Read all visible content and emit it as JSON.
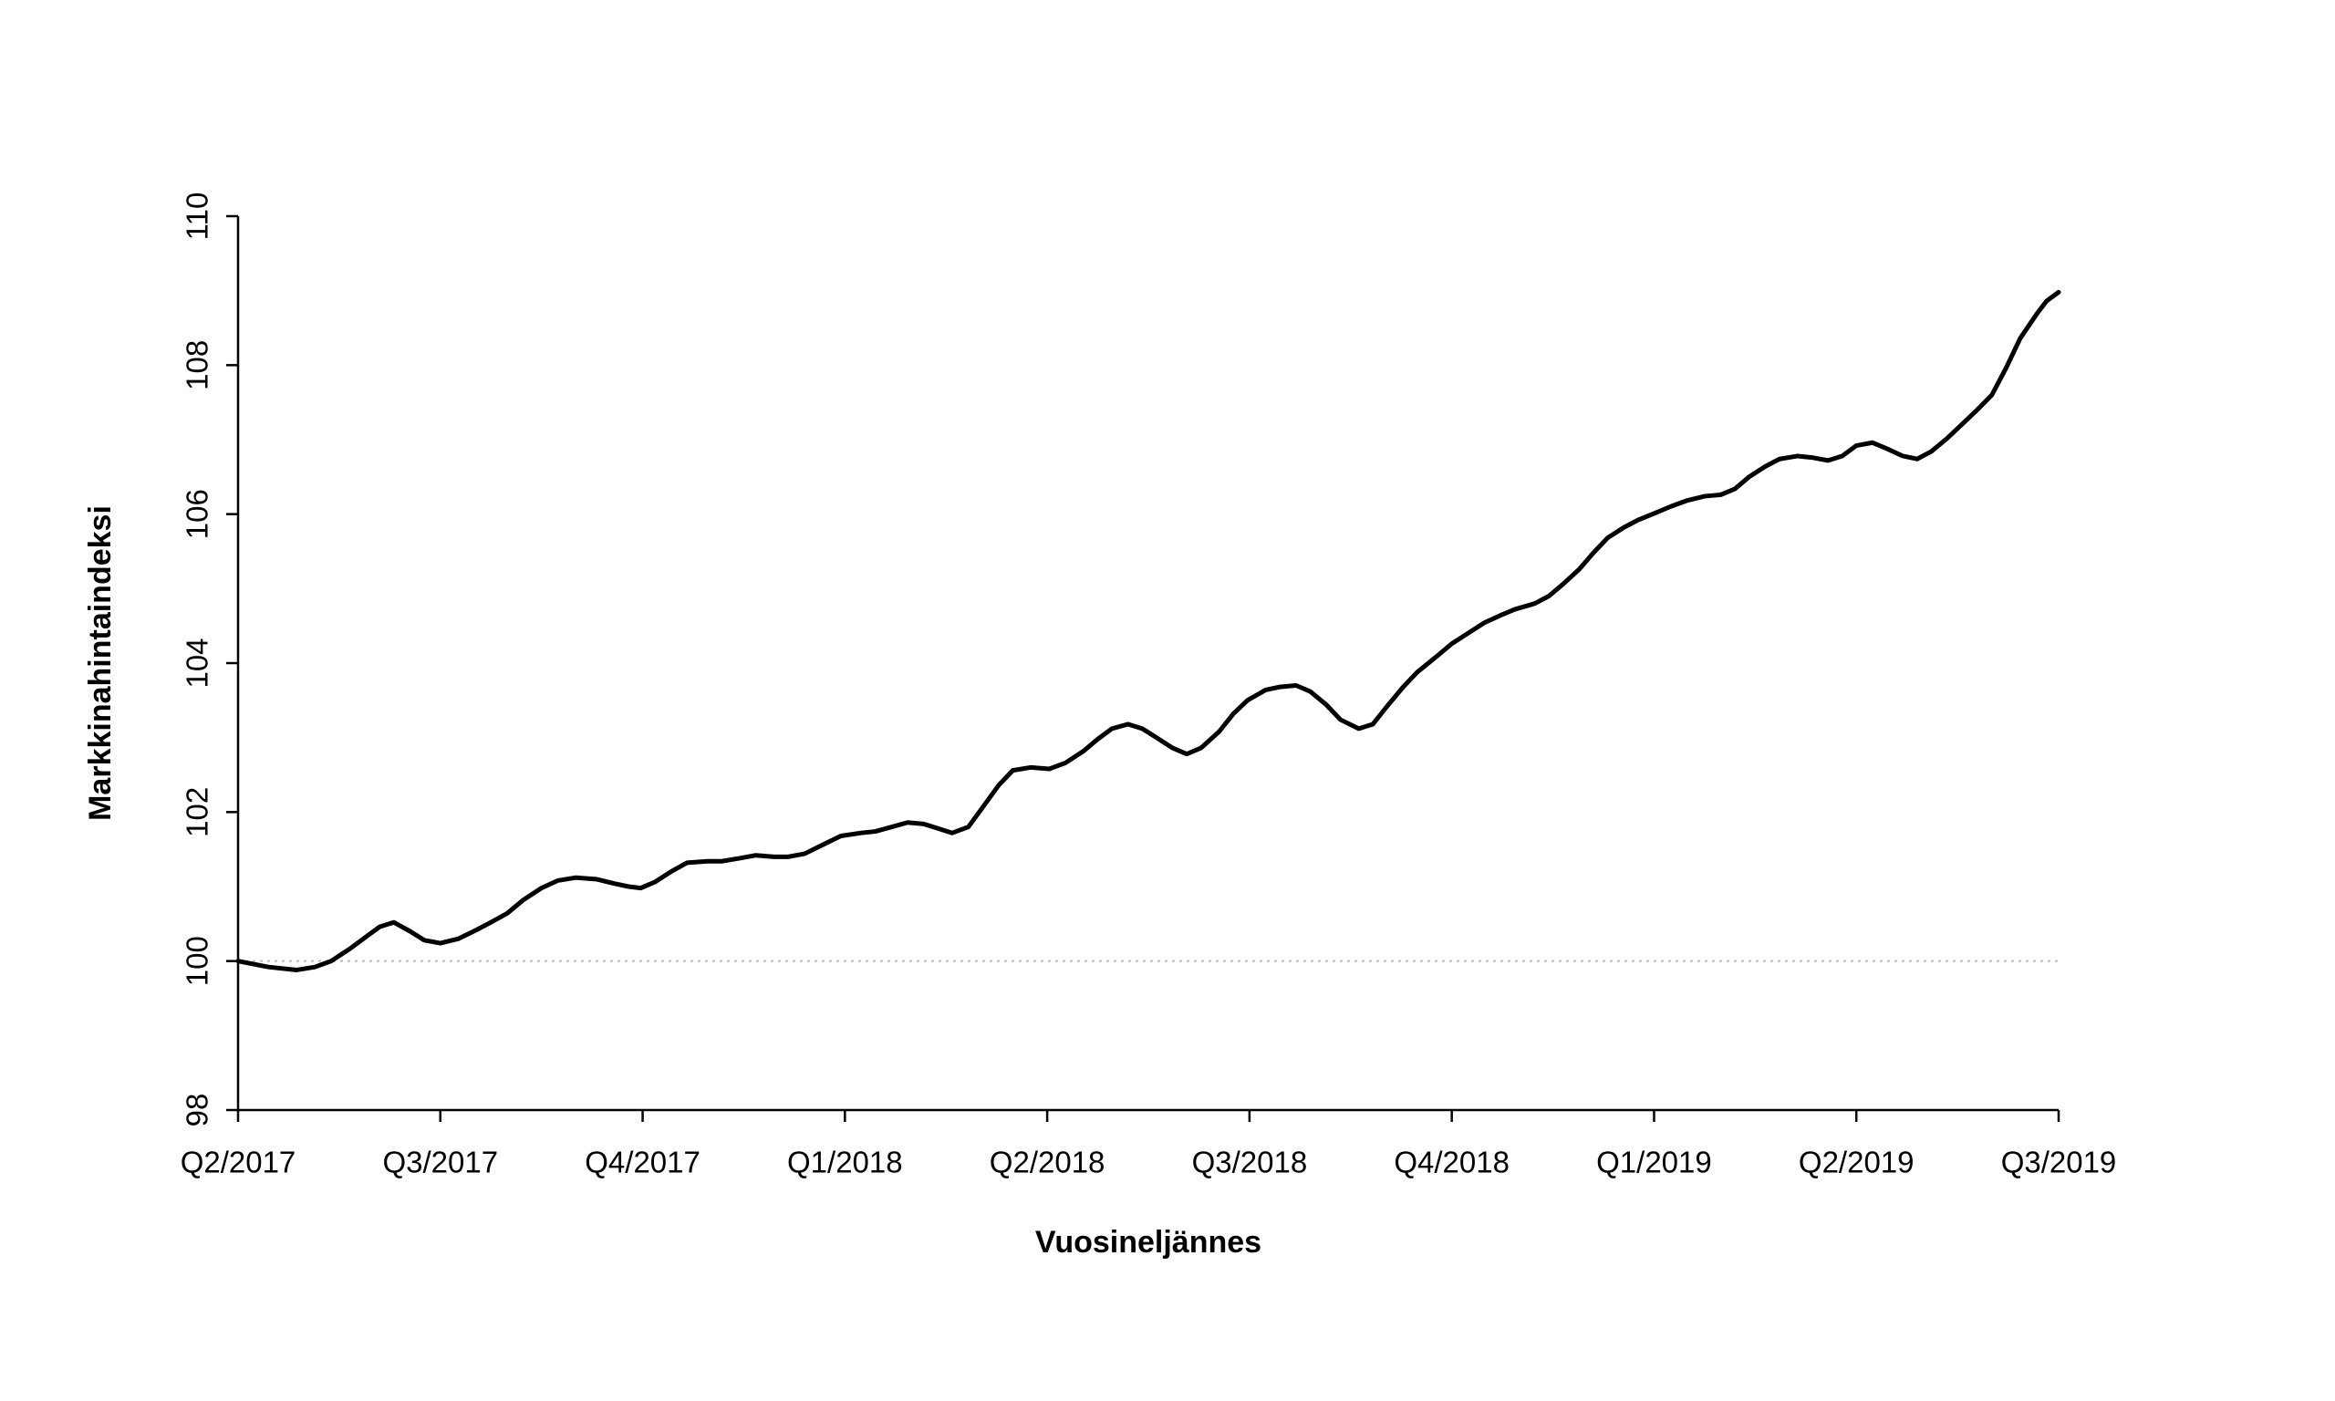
{
  "chart_data": {
    "type": "line",
    "x_label": "Vuosineljännes",
    "y_label": "Markkinahintaindeksi",
    "xlim": [
      0,
      9
    ],
    "ylim": [
      98,
      110
    ],
    "xticks": [
      {
        "value": 0,
        "label": "Q2/2017"
      },
      {
        "value": 1,
        "label": "Q3/2017"
      },
      {
        "value": 2,
        "label": "Q4/2017"
      },
      {
        "value": 3,
        "label": "Q1/2018"
      },
      {
        "value": 4,
        "label": "Q2/2018"
      },
      {
        "value": 5,
        "label": "Q3/2018"
      },
      {
        "value": 6,
        "label": "Q4/2018"
      },
      {
        "value": 7,
        "label": "Q1/2019"
      },
      {
        "value": 8,
        "label": "Q2/2019"
      },
      {
        "value": 9,
        "label": "Q3/2019"
      }
    ],
    "yticks": [
      98,
      100,
      102,
      104,
      106,
      108,
      110
    ],
    "reference_line": 100,
    "series": [
      {
        "color": "#000000",
        "x": [
          0,
          0.15,
          0.29,
          0.38,
          0.46,
          0.55,
          0.64,
          0.7,
          0.77,
          0.85,
          0.92,
          1.0,
          1.09,
          1.18,
          1.25,
          1.33,
          1.41,
          1.5,
          1.58,
          1.67,
          1.77,
          1.86,
          1.93,
          1.99,
          2.06,
          2.14,
          2.22,
          2.32,
          2.39,
          2.48,
          2.56,
          2.65,
          2.72,
          2.8,
          2.89,
          2.98,
          3.08,
          3.15,
          3.23,
          3.31,
          3.39,
          3.46,
          3.53,
          3.61,
          3.68,
          3.76,
          3.83,
          3.92,
          4.01,
          4.09,
          4.18,
          4.25,
          4.32,
          4.4,
          4.47,
          4.54,
          4.62,
          4.69,
          4.76,
          4.85,
          4.92,
          4.99,
          5.08,
          5.15,
          5.23,
          5.3,
          5.38,
          5.45,
          5.54,
          5.61,
          5.68,
          5.76,
          5.83,
          5.93,
          6.0,
          6.08,
          6.16,
          6.24,
          6.31,
          6.41,
          6.48,
          6.55,
          6.63,
          6.7,
          6.77,
          6.85,
          6.92,
          7.01,
          7.08,
          7.16,
          7.25,
          7.33,
          7.4,
          7.47,
          7.55,
          7.62,
          7.71,
          7.78,
          7.86,
          7.93,
          8.0,
          8.08,
          8.15,
          8.23,
          8.3,
          8.37,
          8.45,
          8.52,
          8.59,
          8.67,
          8.74,
          8.81,
          8.89,
          8.94,
          9.0
        ],
        "values": [
          100.0,
          99.92,
          99.88,
          99.92,
          100.0,
          100.16,
          100.34,
          100.46,
          100.52,
          100.4,
          100.28,
          100.24,
          100.3,
          100.42,
          100.52,
          100.64,
          100.82,
          100.98,
          101.08,
          101.12,
          101.1,
          101.04,
          101.0,
          100.98,
          101.06,
          101.2,
          101.32,
          101.34,
          101.34,
          101.38,
          101.42,
          101.4,
          101.4,
          101.44,
          101.56,
          101.68,
          101.72,
          101.74,
          101.8,
          101.86,
          101.84,
          101.78,
          101.72,
          101.8,
          102.06,
          102.36,
          102.56,
          102.6,
          102.58,
          102.66,
          102.82,
          102.98,
          103.12,
          103.18,
          103.12,
          103.0,
          102.86,
          102.78,
          102.86,
          103.08,
          103.32,
          103.5,
          103.64,
          103.68,
          103.7,
          103.62,
          103.44,
          103.24,
          103.12,
          103.18,
          103.42,
          103.68,
          103.88,
          104.1,
          104.26,
          104.4,
          104.54,
          104.64,
          104.72,
          104.8,
          104.9,
          105.06,
          105.26,
          105.48,
          105.68,
          105.82,
          105.92,
          106.02,
          106.1,
          106.18,
          106.24,
          106.26,
          106.34,
          106.5,
          106.64,
          106.74,
          106.78,
          106.76,
          106.72,
          106.78,
          106.92,
          106.96,
          106.88,
          106.78,
          106.74,
          106.84,
          107.02,
          107.2,
          107.38,
          107.6,
          107.96,
          108.36,
          108.68,
          108.86,
          108.98
        ]
      }
    ]
  }
}
